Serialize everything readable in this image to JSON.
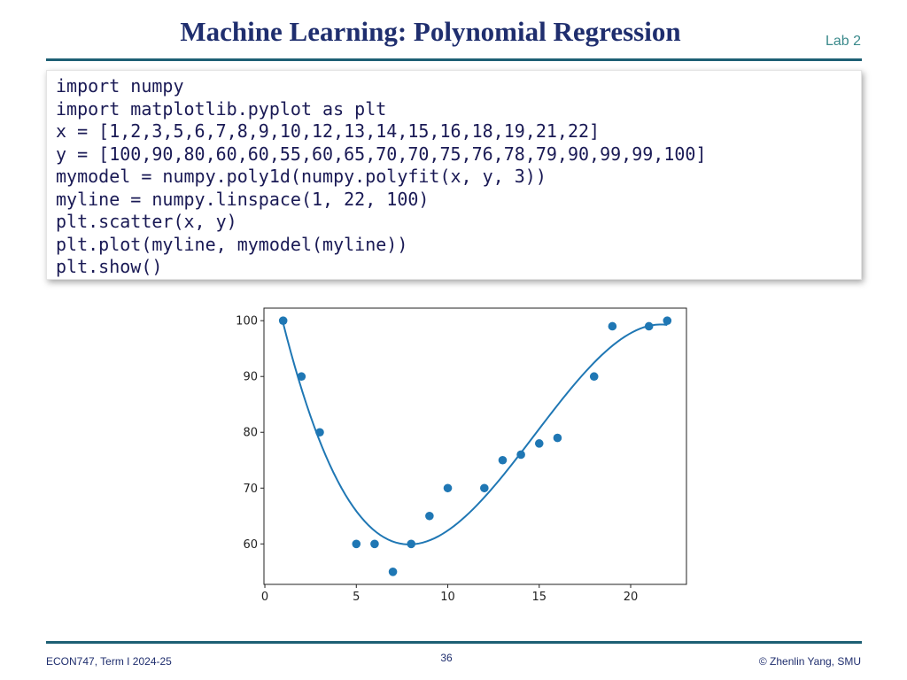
{
  "header": {
    "title": "Machine Learning: Polynomial Regression",
    "lab": "Lab 2"
  },
  "code": [
    "import numpy",
    "import matplotlib.pyplot as plt",
    "x = [1,2,3,5,6,7,8,9,10,12,13,14,15,16,18,19,21,22]",
    "y = [100,90,80,60,60,55,60,65,70,70,75,76,78,79,90,99,99,100]",
    "mymodel = numpy.poly1d(numpy.polyfit(x, y, 3))",
    "myline = numpy.linspace(1, 22, 100)",
    "plt.scatter(x, y)",
    "plt.plot(myline, mymodel(myline))",
    "plt.show()"
  ],
  "chart_data": {
    "type": "scatter",
    "x": [
      1,
      2,
      3,
      5,
      6,
      7,
      8,
      9,
      10,
      12,
      13,
      14,
      15,
      16,
      18,
      19,
      21,
      22
    ],
    "y": [
      100,
      90,
      80,
      60,
      60,
      55,
      60,
      65,
      70,
      70,
      75,
      76,
      78,
      79,
      90,
      99,
      99,
      100
    ],
    "fit": {
      "type": "line",
      "degree": 3,
      "x_range": [
        1,
        22
      ],
      "n_points": 100
    },
    "xlim": [
      -0.05,
      23.05
    ],
    "ylim": [
      52.75,
      102.25
    ],
    "xticks": [
      0,
      5,
      10,
      15,
      20
    ],
    "yticks": [
      60,
      70,
      80,
      90,
      100
    ],
    "title": "",
    "xlabel": "",
    "ylabel": "",
    "grid": false,
    "point_color": "#1f77b4",
    "line_color": "#1f77b4"
  },
  "footer": {
    "course": "ECON747, Term I  2024-25",
    "page": "36",
    "copyright": "© Zhenlin Yang, SMU"
  }
}
